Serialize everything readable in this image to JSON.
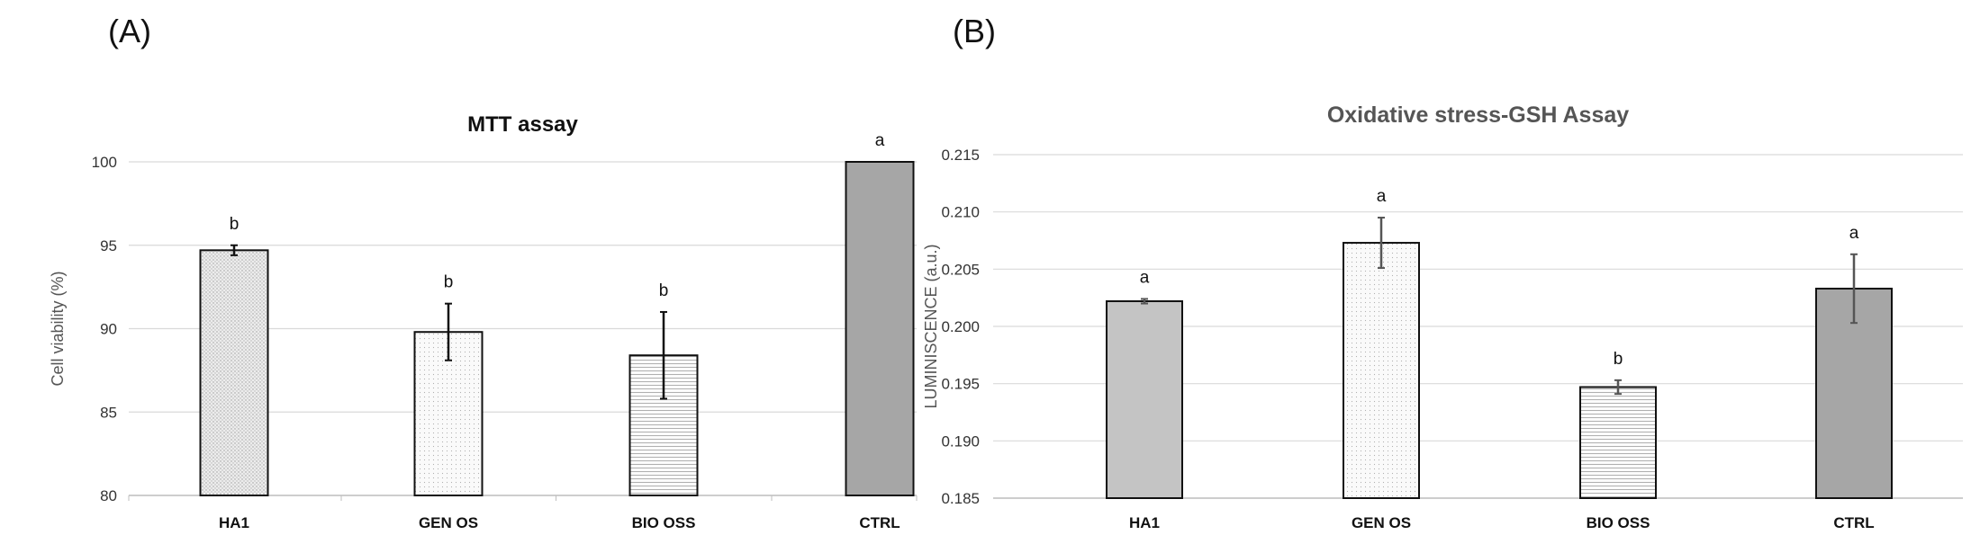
{
  "panels": [
    "(A)",
    "(B)"
  ],
  "chart_data": [
    {
      "panel": "(A)",
      "type": "bar",
      "title": "MTT assay",
      "xlabel": "",
      "ylabel": "Cell viability (%)",
      "ylim": [
        80,
        100
      ],
      "yticks": [
        80,
        85,
        90,
        95,
        100
      ],
      "categories": [
        "HA1",
        "GEN OS",
        "BIO OSS",
        "CTRL"
      ],
      "values": [
        94.7,
        89.8,
        88.4,
        100
      ],
      "errors": [
        0.3,
        1.7,
        2.6,
        0
      ],
      "significance": [
        "b",
        "b",
        "b",
        "a"
      ],
      "bar_fills": [
        "dots-light",
        "dots-fine",
        "hlines",
        "solid"
      ],
      "bar_colors": [
        "#e9e9e9",
        "#f3f3f3",
        "#f5f5f5",
        "#a6a6a6"
      ],
      "grid": true
    },
    {
      "panel": "(B)",
      "type": "bar",
      "title": "Oxidative stress-GSH Assay",
      "xlabel": "",
      "ylabel": "LUMINISCENCE (a.u.)",
      "ylim": [
        0.185,
        0.215
      ],
      "yticks": [
        "0.185",
        "0.190",
        "0.195",
        "0.200",
        "0.205",
        "0.210",
        "0.215"
      ],
      "categories": [
        "HA1",
        "GEN OS",
        "BIO OSS",
        "CTRL"
      ],
      "values": [
        0.2022,
        0.2073,
        0.1947,
        0.2033
      ],
      "errors": [
        0.0002,
        0.0022,
        0.0006,
        0.003
      ],
      "significance": [
        "a",
        "a",
        "b",
        "a"
      ],
      "bar_fills": [
        "solid",
        "dots-fine",
        "hlines",
        "solid"
      ],
      "bar_colors": [
        "#c4c4c4",
        "#f8f8f8",
        "#f5f5f5",
        "#a6a6a6"
      ],
      "grid": true
    }
  ]
}
